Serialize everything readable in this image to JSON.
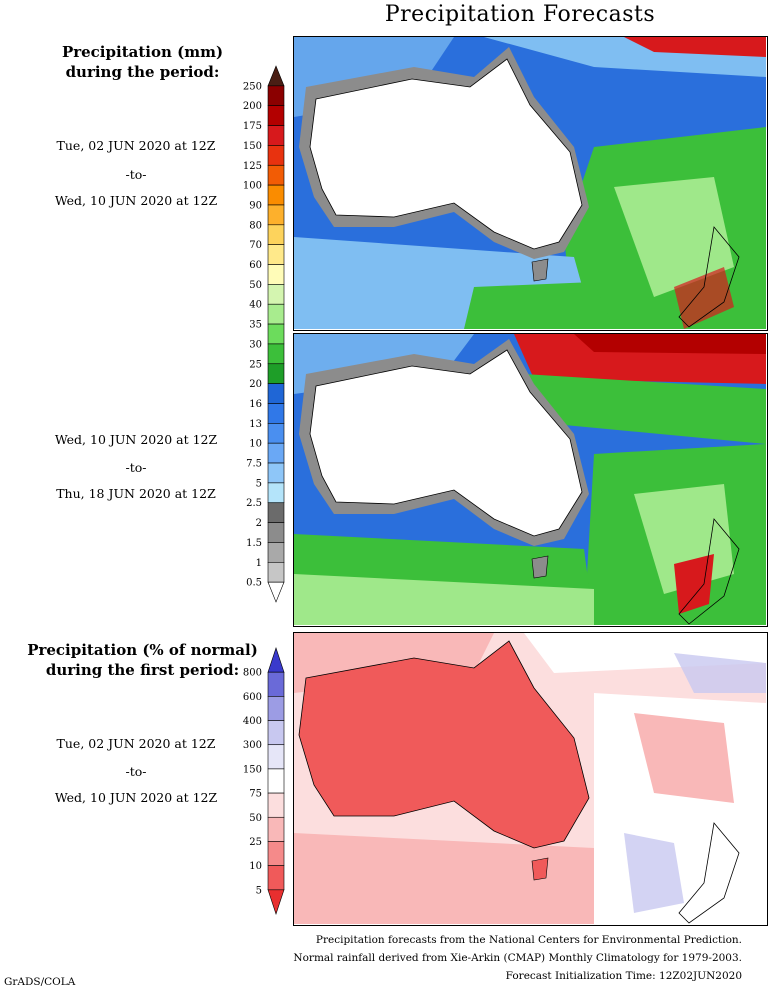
{
  "title": "Precipitation Forecasts",
  "precip_legend": {
    "heading_line1": "Precipitation (mm)",
    "heading_line2": "during the period:",
    "levels": [
      "250",
      "200",
      "175",
      "150",
      "125",
      "100",
      "90",
      "80",
      "70",
      "60",
      "50",
      "40",
      "35",
      "30",
      "25",
      "20",
      "16",
      "13",
      "10",
      "7.5",
      "5",
      "2.5",
      "2",
      "1.5",
      "1",
      "0.5"
    ],
    "colors": [
      "#4a1e14",
      "#8b0000",
      "#b30000",
      "#d7191c",
      "#e8320f",
      "#f25c05",
      "#fa8c00",
      "#fdb02c",
      "#fdd35c",
      "#ffe98a",
      "#fffcb8",
      "#d4f5b0",
      "#a8ec8e",
      "#6cdc5c",
      "#3cbf3a",
      "#1e9e28",
      "#1f66d6",
      "#3078e8",
      "#4a8ff0",
      "#6aa8f5",
      "#8ec6f8",
      "#b4e4fa",
      "#6b6b6b",
      "#8c8c8c",
      "#a9a9a9",
      "#c6c6c6",
      "#ffffff"
    ]
  },
  "pct_legend": {
    "heading_line1": "Precipitation (% of normal)",
    "heading_line2": "during the first period:",
    "levels": [
      "800",
      "600",
      "400",
      "300",
      "150",
      "75",
      "50",
      "25",
      "10",
      "5"
    ],
    "colors": [
      "#3a3acc",
      "#6a6ad8",
      "#9c9ce4",
      "#c8c8f0",
      "#e6e6f8",
      "#ffffff",
      "#fcdede",
      "#f9b8b8",
      "#f58a8a",
      "#f05a5a",
      "#e82f2f"
    ]
  },
  "periods": [
    {
      "start": "Tue, 02 JUN 2020 at 12Z",
      "sep": "-to-",
      "end": "Wed, 10 JUN 2020 at 12Z"
    },
    {
      "start": "Wed, 10 JUN 2020 at 12Z",
      "sep": "-to-",
      "end": "Thu, 18 JUN 2020 at 12Z"
    },
    {
      "start": "Tue, 02 JUN 2020 at 12Z",
      "sep": "-to-",
      "end": "Wed, 10 JUN 2020 at 12Z"
    }
  ],
  "credits": {
    "line1": "Precipitation forecasts from the National Centers for Environmental Prediction.",
    "line2": "Normal rainfall derived from Xie-Arkin (CMAP) Monthly Climatology for 1979-2003.",
    "line3": "Forecast Initialization Time: 12Z02JUN2020"
  },
  "footer": "GrADS/COLA",
  "panel_colors": {
    "ocean_blue": "#2a6fdc",
    "light_blue": "#7fbef2",
    "green": "#3cbf3a",
    "light_green": "#9fe88a",
    "red": "#d7191c",
    "gray": "#8c8c8c",
    "pct_red": "#f05a5a",
    "pct_pink": "#f9b8b8",
    "pct_lav": "#c8c8f0"
  }
}
